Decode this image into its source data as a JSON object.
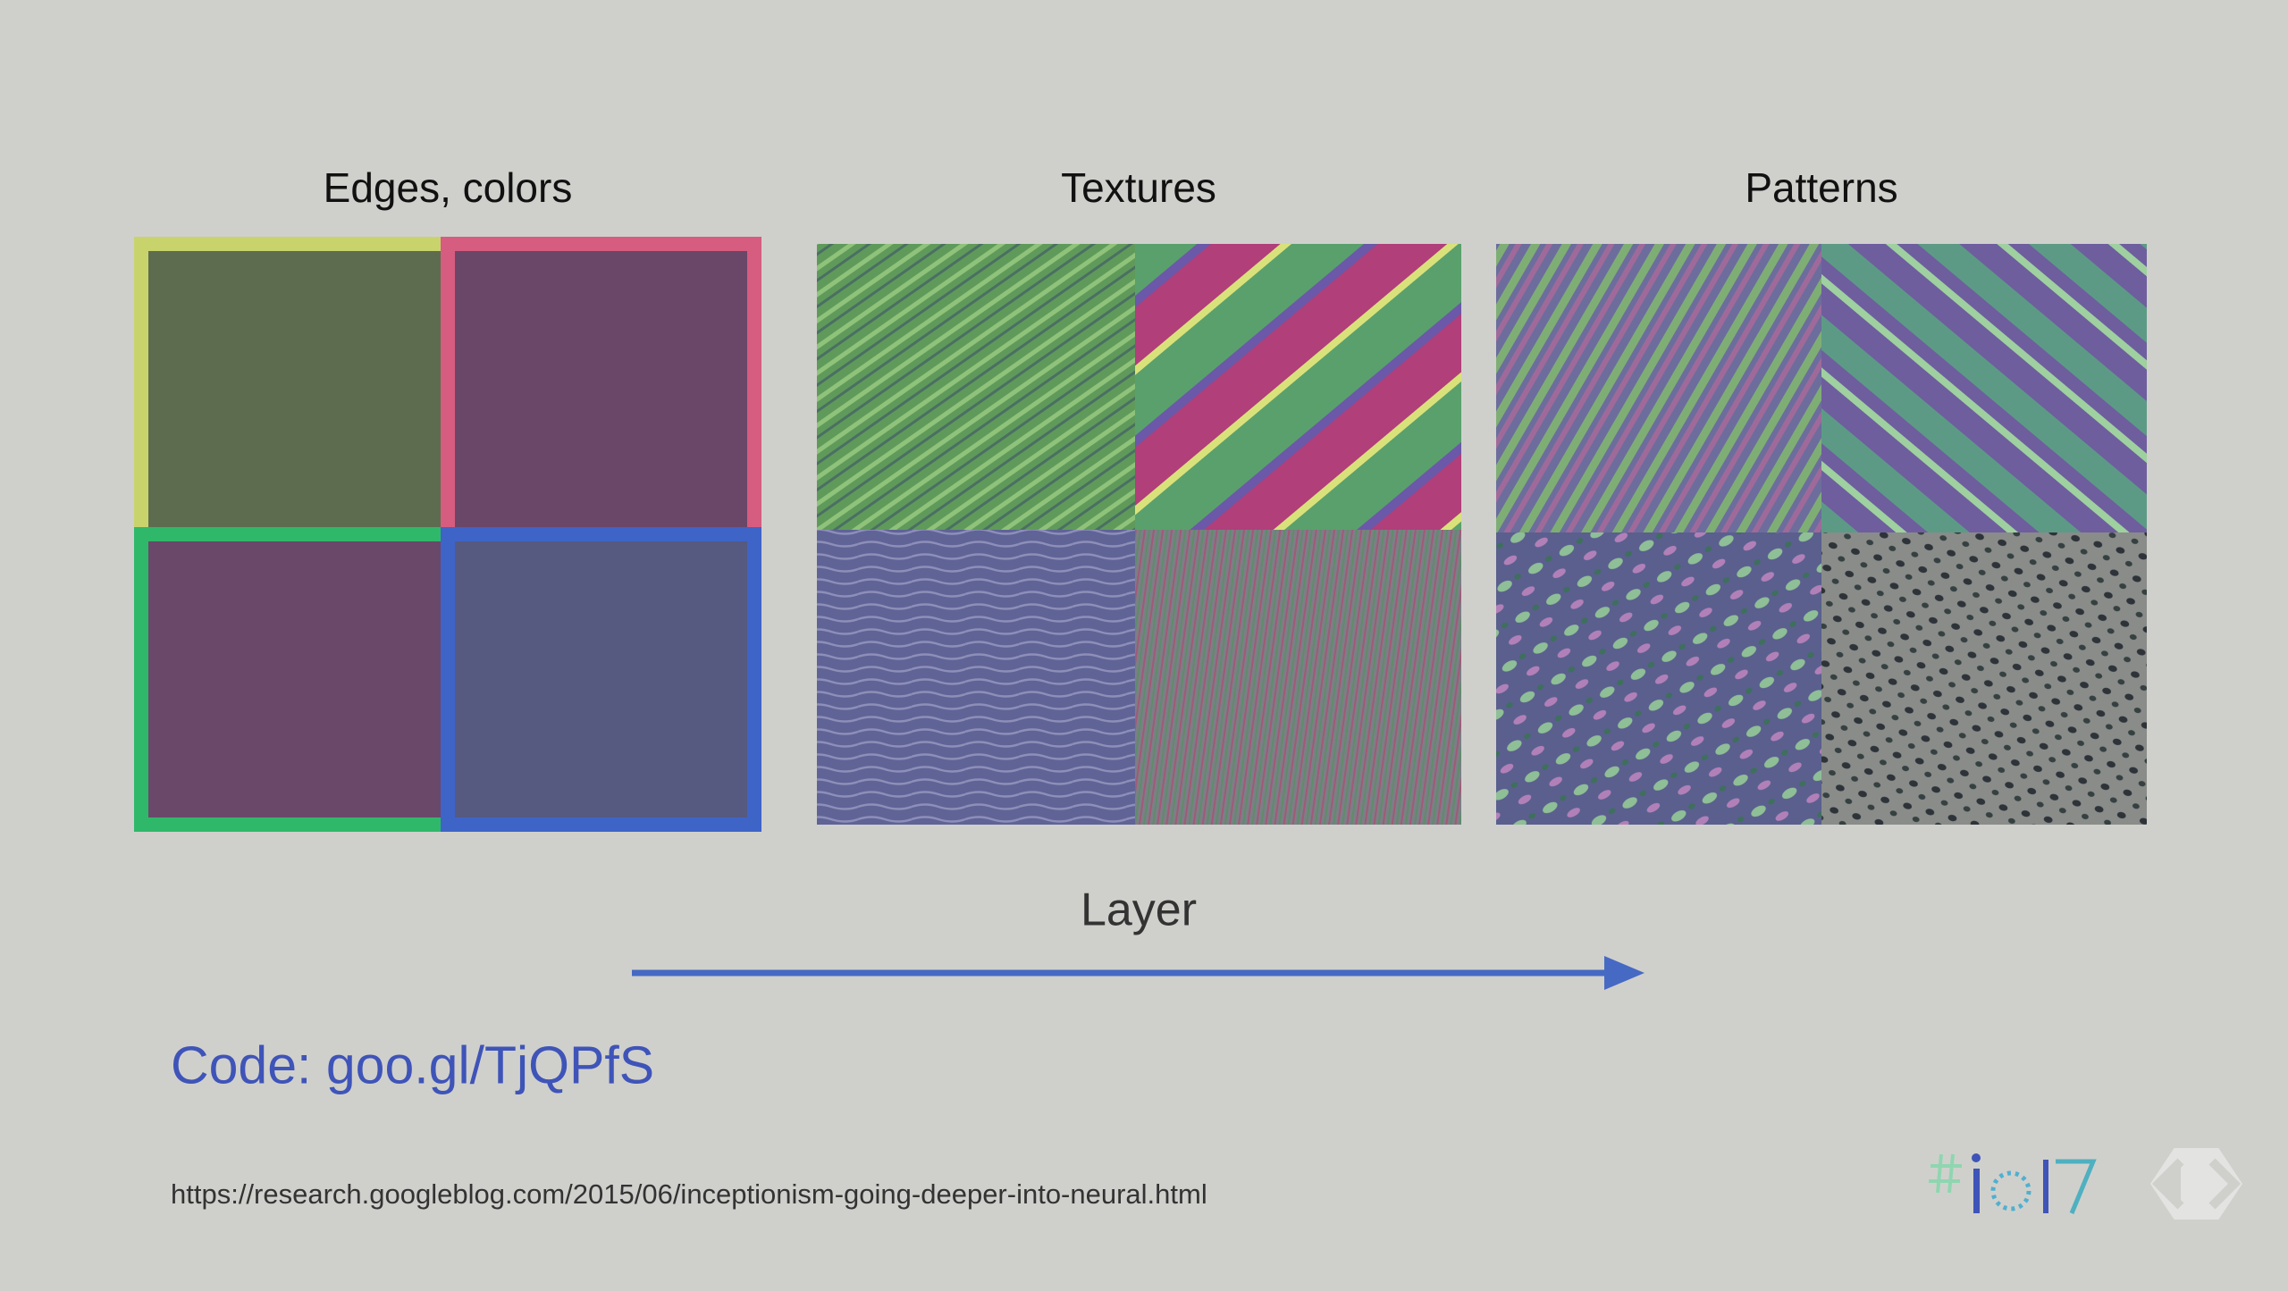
{
  "panels": [
    {
      "title": "Edges, colors"
    },
    {
      "title": "Textures"
    },
    {
      "title": "Patterns"
    }
  ],
  "axis_label": "Layer",
  "code_link": "Code: goo.gl/TjQPfS",
  "source_url": "https://research.googleblog.com/2015/06/inceptionism-going-deeper-into-neural.html"
}
